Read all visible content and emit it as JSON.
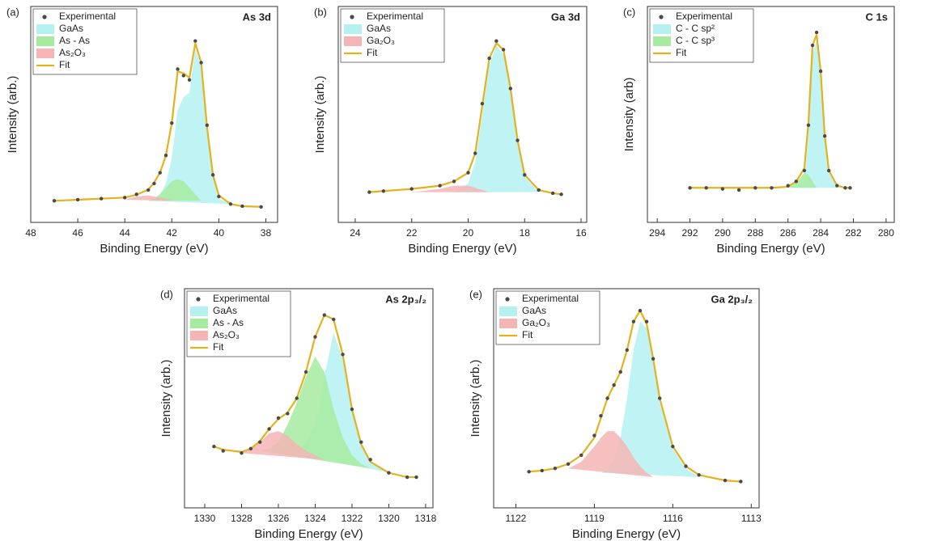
{
  "chart_data": [
    {
      "type": "line",
      "panel_label": "(a)",
      "title": "As 3d",
      "xlabel": "Binding Energy (eV)",
      "ylabel": "Intensity (arb.)",
      "xlim": [
        48,
        37.5
      ],
      "xticks": [
        48,
        46,
        44,
        42,
        40,
        38
      ],
      "ylim": [
        0,
        100
      ],
      "legend": "upper left",
      "x": [
        47,
        46,
        45,
        44,
        43.5,
        43,
        42.75,
        42.5,
        42.25,
        42,
        41.75,
        41.5,
        41.25,
        41,
        40.75,
        40.5,
        40.25,
        40,
        39.5,
        39,
        38.2
      ],
      "series": [
        {
          "name": "Experimental",
          "style": "markers",
          "color": "#4a4a4a",
          "values": [
            10,
            10.5,
            11,
            11.5,
            13,
            15,
            18,
            23,
            31,
            46,
            71,
            68,
            66,
            84,
            74,
            45,
            22,
            12,
            8.5,
            7.5,
            7.2
          ]
        },
        {
          "name": "GaAs",
          "style": "area",
          "color": "#b5f1f1",
          "values": [
            null,
            null,
            null,
            null,
            null,
            10,
            11,
            13,
            18,
            30,
            52,
            58,
            60,
            80,
            72,
            43,
            21,
            11,
            8.5,
            null,
            null
          ]
        },
        {
          "name": "As - As",
          "style": "area",
          "color": "#a6eba0",
          "values": [
            null,
            null,
            null,
            null,
            null,
            10,
            11,
            13,
            16,
            19,
            20,
            19,
            16,
            13,
            10,
            null,
            null,
            null,
            null,
            null,
            null
          ]
        },
        {
          "name": "As₂O₃",
          "style": "area",
          "color": "#f5b5b5",
          "values": [
            null,
            null,
            null,
            10.5,
            12,
            12.5,
            12,
            11.5,
            11,
            10,
            null,
            null,
            null,
            null,
            null,
            null,
            null,
            null,
            null,
            null,
            null
          ]
        },
        {
          "name": "Fit",
          "style": "line",
          "color": "#e3b21f",
          "values": [
            10,
            10.5,
            11,
            11.5,
            12.8,
            15.2,
            18.5,
            23,
            31,
            46,
            70,
            69,
            67,
            83,
            74,
            44,
            22,
            12.5,
            8.5,
            7.5,
            7.2
          ]
        }
      ]
    },
    {
      "type": "line",
      "panel_label": "(b)",
      "title": "Ga 3d",
      "xlabel": "Binding Energy (eV)",
      "ylabel": "Intensity (arb.)",
      "xlim": [
        24.6,
        15.8
      ],
      "xticks": [
        24,
        22,
        20,
        18,
        16
      ],
      "ylim": [
        0,
        100
      ],
      "legend": "upper left",
      "x": [
        23.5,
        23,
        22,
        21,
        20.5,
        20,
        19.75,
        19.5,
        19.25,
        19,
        18.75,
        18.5,
        18.25,
        18,
        17.5,
        17,
        16.7
      ],
      "series": [
        {
          "name": "Experimental",
          "style": "markers",
          "color": "#4a4a4a",
          "values": [
            14,
            14.5,
            15.5,
            17,
            19,
            23,
            32,
            55,
            76,
            84,
            80,
            62,
            38,
            22,
            15,
            13.5,
            13
          ]
        },
        {
          "name": "GaAs",
          "style": "area",
          "color": "#b5f1f1",
          "values": [
            null,
            null,
            null,
            null,
            14,
            18,
            28,
            50,
            73,
            82,
            78,
            60,
            37,
            21,
            14,
            null,
            null
          ]
        },
        {
          "name": "Ga₂O₃",
          "style": "area",
          "color": "#f5b5b5",
          "values": [
            null,
            null,
            14,
            15.5,
            17,
            17,
            16,
            15,
            14,
            null,
            null,
            null,
            null,
            null,
            null,
            null,
            null
          ]
        },
        {
          "name": "Fit",
          "style": "line",
          "color": "#e3b21f",
          "values": [
            14,
            14.5,
            15.5,
            17,
            19,
            23,
            32,
            54,
            76,
            83,
            80,
            62,
            38,
            22,
            15,
            13.5,
            13
          ]
        }
      ]
    },
    {
      "type": "line",
      "panel_label": "(c)",
      "title": "C 1s",
      "xlabel": "Binding Energy (eV)",
      "ylabel": "Intensity (arb)",
      "xlim": [
        294.6,
        279.5
      ],
      "xticks": [
        294,
        292,
        290,
        288,
        286,
        284,
        282,
        280
      ],
      "ylim": [
        0,
        100
      ],
      "legend": "upper left",
      "x": [
        292,
        291,
        290,
        289,
        288,
        287,
        286,
        285.5,
        285,
        284.75,
        284.5,
        284.25,
        284,
        283.75,
        283.5,
        283,
        282.5,
        282.2
      ],
      "series": [
        {
          "name": "Experimental",
          "style": "markers",
          "color": "#4a4a4a",
          "values": [
            16,
            16,
            15.5,
            15,
            16,
            16,
            17,
            19,
            24,
            45,
            82,
            88,
            70,
            40,
            24,
            17,
            16,
            16
          ]
        },
        {
          "name": "C - C sp²",
          "style": "area",
          "color": "#b5f1f1",
          "values": [
            null,
            null,
            null,
            null,
            null,
            null,
            16,
            17,
            19,
            40,
            78,
            84,
            68,
            39,
            23,
            16,
            null,
            null
          ]
        },
        {
          "name": "C - C sp³",
          "style": "area",
          "color": "#a6eba0",
          "values": [
            null,
            null,
            null,
            null,
            null,
            null,
            16,
            18.5,
            23,
            22,
            19,
            16,
            null,
            null,
            null,
            null,
            null,
            null
          ]
        },
        {
          "name": "Fit",
          "style": "line",
          "color": "#e3b21f",
          "values": [
            16,
            16,
            16,
            16,
            16,
            16,
            16.5,
            19,
            25,
            46,
            82,
            87,
            70,
            40,
            24,
            17,
            16,
            16
          ]
        }
      ]
    },
    {
      "type": "line",
      "panel_label": "(d)",
      "title": "As 2p₃/₂",
      "xlabel": "Binding Energy (eV)",
      "ylabel": "Intensity (arb.)",
      "xlim": [
        1331.1,
        1317.6
      ],
      "xticks": [
        1330,
        1328,
        1326,
        1324,
        1322,
        1320,
        1318
      ],
      "ylim": [
        0,
        100
      ],
      "legend": "upper left",
      "x": [
        1329.5,
        1329,
        1328,
        1327.5,
        1327,
        1326.5,
        1326,
        1325.5,
        1325,
        1324.5,
        1324,
        1323.5,
        1323,
        1322.5,
        1322,
        1321.5,
        1321,
        1320,
        1319,
        1318.5
      ],
      "series": [
        {
          "name": "Experimental",
          "style": "markers",
          "color": "#4a4a4a",
          "values": [
            28,
            26,
            25,
            27,
            30,
            36,
            41,
            43,
            50,
            62,
            78,
            88,
            86,
            70,
            45,
            30,
            22,
            16,
            14,
            14
          ]
        },
        {
          "name": "GaAs",
          "style": "area",
          "color": "#b5f1f1",
          "values": [
            null,
            null,
            null,
            null,
            null,
            null,
            null,
            null,
            25,
            30,
            38,
            60,
            80,
            68,
            44,
            29,
            21,
            16,
            null,
            null
          ]
        },
        {
          "name": "As - As",
          "style": "area",
          "color": "#a6eba0",
          "values": [
            null,
            null,
            null,
            null,
            26,
            27,
            30,
            38,
            48,
            60,
            69,
            62,
            45,
            32,
            24,
            20,
            18,
            null,
            null,
            null
          ]
        },
        {
          "name": "As₂O₃",
          "style": "area",
          "color": "#f5b5b5",
          "values": [
            null,
            null,
            25,
            27,
            30,
            34,
            35,
            33,
            29,
            26,
            24,
            22,
            null,
            null,
            null,
            null,
            null,
            null,
            null,
            null
          ]
        },
        {
          "name": "Fit",
          "style": "line",
          "color": "#e3b21f",
          "values": [
            28,
            26.5,
            25.5,
            27,
            30.5,
            36,
            40.5,
            43.5,
            50,
            62,
            78,
            88,
            86,
            70,
            45,
            29,
            21,
            16,
            14,
            14
          ]
        }
      ]
    },
    {
      "type": "line",
      "panel_label": "(e)",
      "title": "Ga 2p₃/₂",
      "xlabel": "Binding Energy (eV)",
      "ylabel": "Intensity (arb.)",
      "xlim": [
        1122.85,
        1112.7
      ],
      "xticks": [
        1122,
        1119,
        1116,
        1113
      ],
      "ylim": [
        0,
        100
      ],
      "legend": "upper left",
      "x": [
        1121.5,
        1121,
        1120.5,
        1120,
        1119.5,
        1119,
        1118.75,
        1118.5,
        1118.25,
        1118,
        1117.75,
        1117.5,
        1117.25,
        1117,
        1116.75,
        1116.5,
        1116,
        1115.5,
        1115,
        1114,
        1113.4
      ],
      "series": [
        {
          "name": "Experimental",
          "style": "markers",
          "color": "#4a4a4a",
          "values": [
            16.5,
            17,
            18,
            20,
            24,
            33,
            42,
            50,
            56,
            62,
            72,
            85,
            90,
            85,
            68,
            50,
            28,
            19,
            15,
            12.5,
            12
          ]
        },
        {
          "name": "GaAs",
          "style": "area",
          "color": "#b5f1f1",
          "values": [
            null,
            null,
            null,
            null,
            null,
            null,
            16,
            17,
            22,
            32,
            50,
            72,
            85,
            82,
            66,
            48,
            27,
            18,
            14,
            null,
            null
          ]
        },
        {
          "name": "Ga₂O₃",
          "style": "area",
          "color": "#f5b5b5",
          "values": [
            null,
            null,
            null,
            18,
            21,
            28,
            32,
            35,
            35,
            32,
            28,
            23,
            19,
            16,
            14,
            null,
            null,
            null,
            null,
            null,
            null
          ]
        },
        {
          "name": "Fit",
          "style": "line",
          "color": "#e3b21f",
          "values": [
            16.5,
            17,
            18,
            20,
            24,
            32,
            41,
            50,
            56,
            62,
            72,
            85,
            90,
            84,
            68,
            50,
            28,
            19,
            15,
            12.5,
            12
          ]
        }
      ]
    }
  ]
}
